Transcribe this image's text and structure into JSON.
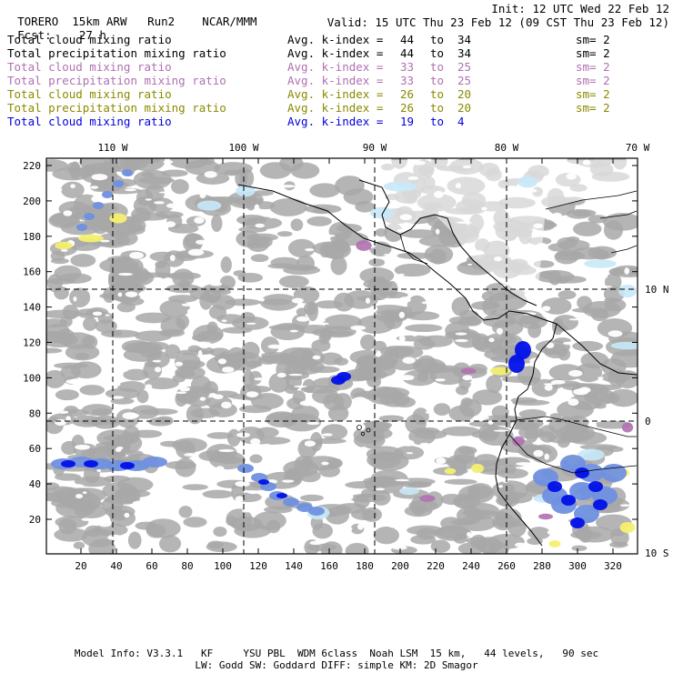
{
  "header": {
    "model": "TORERO",
    "resolution": "15km ARW",
    "run": "Run2",
    "org": "NCAR/MMM",
    "init": "Init: 12 UTC Wed 22 Feb 12",
    "fcst_label": "Fcst:",
    "fcst_value": "27 h",
    "valid": "Valid: 15 UTC Thu 23 Feb 12 (09 CST Thu 23 Feb 12)"
  },
  "legend_rows": [
    {
      "field": "Total cloud mixing ratio",
      "stat": "Avg. k-index =",
      "from": "44",
      "to_word": "to",
      "to": "34",
      "sm": "sm= 2",
      "color": "#000000"
    },
    {
      "field": "Total precipitation mixing ratio",
      "stat": "Avg. k-index =",
      "from": "44",
      "to_word": "to",
      "to": "34",
      "sm": "sm= 2",
      "color": "#000000"
    },
    {
      "field": "Total cloud mixing ratio",
      "stat": "Avg. k-index =",
      "from": "33",
      "to_word": "to",
      "to": "25",
      "sm": "sm= 2",
      "color": "#b070b0"
    },
    {
      "field": "Total precipitation mixing ratio",
      "stat": "Avg. k-index =",
      "from": "33",
      "to_word": "to",
      "to": "25",
      "sm": "sm= 2",
      "color": "#b070b0"
    },
    {
      "field": "Total cloud mixing ratio",
      "stat": "Avg. k-index =",
      "from": "26",
      "to_word": "to",
      "to": "20",
      "sm": "sm= 2",
      "color": "#8a8a00"
    },
    {
      "field": "Total precipitation mixing ratio",
      "stat": "Avg. k-index =",
      "from": "26",
      "to_word": "to",
      "to": "20",
      "sm": "sm= 2",
      "color": "#8a8a00"
    },
    {
      "field": "Total cloud mixing ratio",
      "stat": "Avg. k-index =",
      "from": "19",
      "to_word": "to",
      "to": "4",
      "sm": "",
      "color": "#0000dd"
    }
  ],
  "map": {
    "top_lon_labels": [
      "110 W",
      "100 W",
      "90 W",
      "80 W",
      "70 W"
    ],
    "right_lat_labels": [
      "10 N",
      "0",
      "10 S"
    ],
    "y_ticks": [
      "220",
      "200",
      "180",
      "160",
      "140",
      "120",
      "100",
      "80",
      "60",
      "40",
      "20"
    ],
    "x_ticks": [
      "20",
      "40",
      "60",
      "80",
      "100",
      "120",
      "140",
      "160",
      "180",
      "200",
      "220",
      "240",
      "260",
      "280",
      "300",
      "320"
    ],
    "colors": {
      "cloud_gray": "#a8a8a8",
      "light_blue": "#c8e8f8",
      "mid_blue": "#7090e0",
      "dark_blue": "#0010e8",
      "yellow": "#f4f070",
      "violet": "#b070b0"
    }
  },
  "footer": {
    "line1": "Model Info: V3.3.1   KF     YSU PBL  WDM 6class  Noah LSM  15 km,   44 levels,   90 sec",
    "line2": "LW: Godd SW: Goddard DIFF: simple KM: 2D Smagor"
  }
}
